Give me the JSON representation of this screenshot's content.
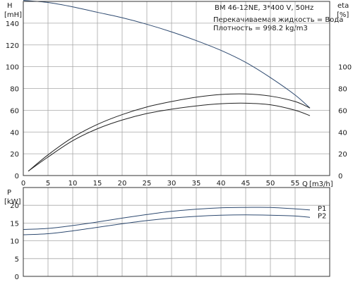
{
  "chart_data": [
    {
      "type": "line",
      "header": {
        "title": "BM 46-12NE, 3*400 V, 50Hz",
        "lines": [
          "Перекачиваемая жидкость = Вода",
          "Плотность = 998.2 kg/m3"
        ]
      },
      "left_axis": {
        "name": "H",
        "unit": "[mH]",
        "ylim": [
          0,
          160
        ],
        "ticks": [
          0,
          20,
          40,
          60,
          80,
          100,
          120,
          140
        ]
      },
      "right_axis": {
        "name": "eta",
        "unit": "[%]",
        "ylim": [
          0,
          160
        ],
        "ticks": [
          0,
          20,
          40,
          60,
          80,
          100
        ]
      },
      "x_axis": {
        "name": "Q",
        "unit": "[m3/h]",
        "xlim": [
          0,
          62
        ],
        "ticks": [
          0,
          5,
          10,
          15,
          20,
          25,
          30,
          35,
          40,
          45,
          50,
          55
        ]
      },
      "grid": true,
      "series": [
        {
          "axis": "left",
          "color": "#2e4a70",
          "x": [
            0,
            5,
            10,
            15,
            20,
            25,
            30,
            35,
            40,
            45,
            50,
            55,
            58
          ],
          "values": [
            161,
            159,
            155,
            150,
            145,
            139,
            132,
            124,
            115,
            104,
            90,
            74,
            62
          ]
        },
        {
          "axis": "right",
          "color": "#222222",
          "x": [
            1,
            5,
            10,
            15,
            20,
            25,
            30,
            35,
            40,
            45,
            50,
            55,
            58
          ],
          "values": [
            4,
            19,
            35,
            47,
            56,
            63,
            68,
            72,
            74.5,
            75,
            73,
            68,
            62
          ]
        },
        {
          "axis": "right",
          "color": "#222222",
          "x": [
            1,
            5,
            10,
            15,
            20,
            25,
            30,
            35,
            40,
            45,
            50,
            55,
            58
          ],
          "values": [
            4,
            17,
            32,
            43,
            51,
            57,
            61,
            64,
            66,
            66.5,
            65,
            60,
            55
          ]
        }
      ]
    },
    {
      "type": "line",
      "y_axis": {
        "name": "P",
        "unit": "[kW]",
        "ylim": [
          0,
          25
        ],
        "ticks": [
          0,
          5,
          10,
          15,
          20
        ]
      },
      "x_axis": {
        "xlim": [
          0,
          62
        ]
      },
      "grid": true,
      "series": [
        {
          "name": "P1",
          "color": "#2e4a70",
          "x": [
            0,
            5,
            10,
            15,
            20,
            25,
            30,
            35,
            40,
            45,
            50,
            55,
            58
          ],
          "values": [
            13.2,
            13.5,
            14.3,
            15.3,
            16.4,
            17.4,
            18.3,
            18.9,
            19.3,
            19.4,
            19.4,
            19.0,
            18.7
          ]
        },
        {
          "name": "P2",
          "color": "#2e4a70",
          "x": [
            0,
            5,
            10,
            15,
            20,
            25,
            30,
            35,
            40,
            45,
            50,
            55,
            58
          ],
          "values": [
            11.7,
            12.0,
            12.8,
            13.8,
            14.8,
            15.7,
            16.4,
            16.9,
            17.2,
            17.3,
            17.2,
            17.0,
            16.6
          ]
        }
      ]
    }
  ]
}
